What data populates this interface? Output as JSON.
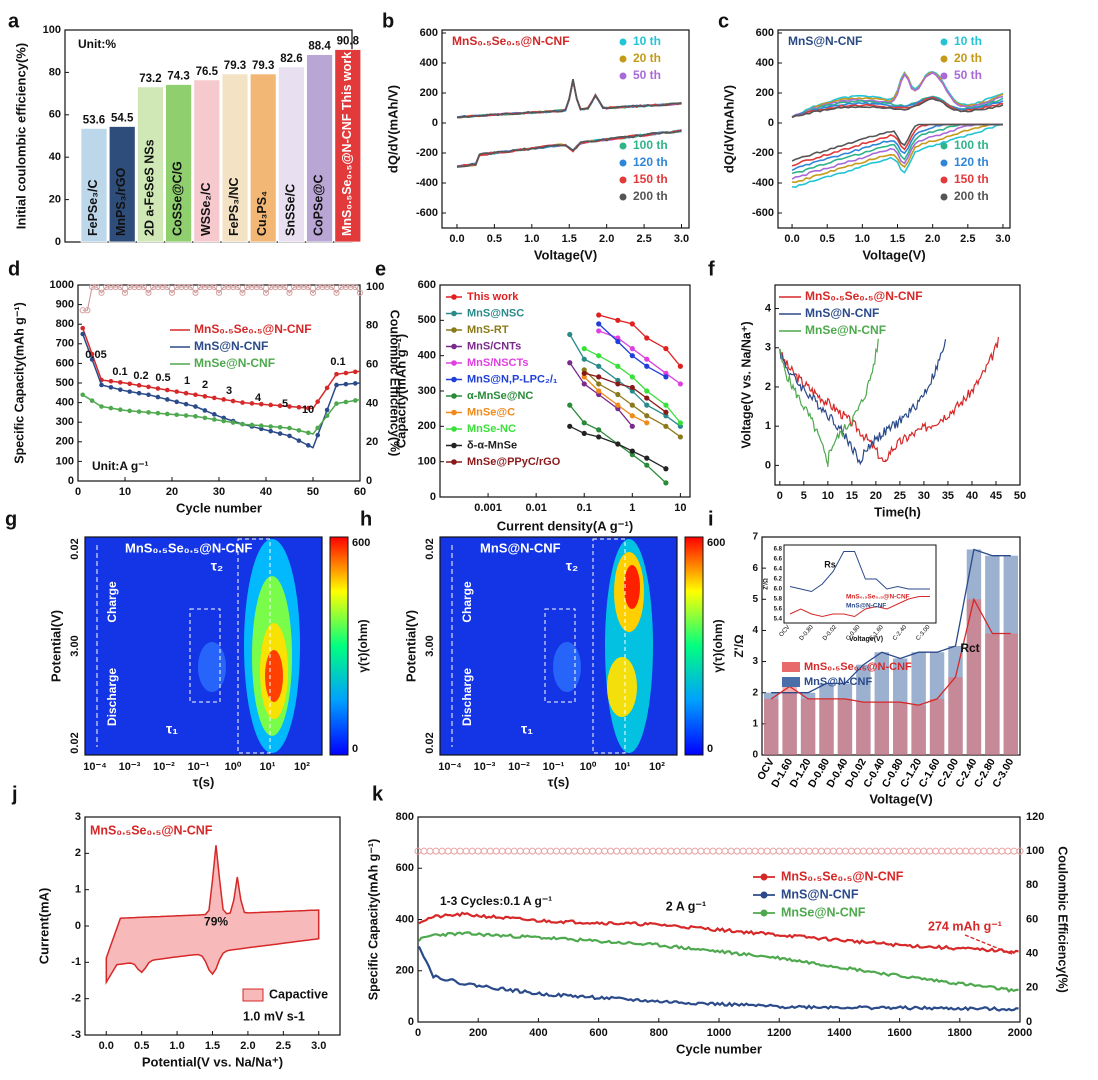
{
  "panels": {
    "a": {
      "letter": "a",
      "unit": "Unit:%",
      "ylabel": "Initial coulombic efficiency(%)",
      "ylim": [
        0,
        100
      ],
      "yticks": [
        0,
        20,
        40,
        60,
        80,
        100
      ],
      "bars": [
        {
          "label": "FePSe₃/C",
          "value": 53.6,
          "value_label": "53.6",
          "color": "#bcd7ea"
        },
        {
          "label": "MnPS₃/rGO",
          "value": 54.5,
          "value_label": "54.5",
          "color": "#2e4d7a"
        },
        {
          "label": "2D a-FeSeS NSs",
          "value": 73.2,
          "value_label": "73.2",
          "color": "#cfe8b6"
        },
        {
          "label": "CoSSe@C/G",
          "value": 74.3,
          "value_label": "74.3",
          "color": "#8fcf6e"
        },
        {
          "label": "WSSe₂/C",
          "value": 76.5,
          "value_label": "76.5",
          "color": "#f6c9cf"
        },
        {
          "label": "FePS₃/NC",
          "value": 79.3,
          "value_label": "79.3",
          "color": "#f3e2c3"
        },
        {
          "label": "Cu₃PS₄",
          "value": 79.3,
          "value_label": "79.3",
          "color": "#f2b774"
        },
        {
          "label": "SnSSe/C",
          "value": 82.6,
          "value_label": "82.6",
          "color": "#e8dff0"
        },
        {
          "label": "CoPSe@C",
          "value": 88.4,
          "value_label": "88.4",
          "color": "#b9a6d4"
        },
        {
          "label": "MnS₀.₅Se₀.₅@N-CNF This work",
          "value": 90.8,
          "value_label": "90.8",
          "color": "#e23a3a"
        }
      ]
    },
    "b": {
      "letter": "b",
      "title": "MnS₀.₅Se₀.₅@N-CNF",
      "xlabel": "Voltage(V)",
      "ylabel": "dQ/dV(mAh/V)",
      "xlim": [
        -0.2,
        3.1
      ],
      "ylim": [
        -700,
        620
      ],
      "xticks": [
        "0.0",
        "0.5",
        "1.0",
        "1.5",
        "2.0",
        "2.5",
        "3.0"
      ],
      "yticks": [
        "600",
        "400",
        "200",
        "0",
        "-200",
        "-400",
        "-600"
      ],
      "legend_top": [
        "10 th",
        "20 th",
        "50 th"
      ],
      "legend_bottom": [
        "100 th",
        "120 th",
        "150 th",
        "200 th"
      ]
    },
    "c": {
      "letter": "c",
      "title": "MnS@N-CNF",
      "xlabel": "Voltage(V)",
      "ylabel": "dQ/dV(mAh/V)",
      "xlim": [
        -0.2,
        3.1
      ],
      "ylim": [
        -700,
        620
      ],
      "xticks": [
        "0.0",
        "0.5",
        "1.0",
        "1.5",
        "2.0",
        "2.5",
        "3.0"
      ],
      "yticks": [
        "600",
        "400",
        "200",
        "0",
        "-200",
        "-400",
        "-600"
      ],
      "legend_top": [
        "10 th",
        "20 th",
        "50 th"
      ],
      "legend_bottom": [
        "100 th",
        "120 th",
        "150 th",
        "200 th"
      ]
    },
    "d": {
      "letter": "d",
      "xlabel": "Cycle number",
      "ylabel": "Specific Capacity(mAh g⁻¹)",
      "y2label": "Coulombic Efficiency(%)",
      "unit": "Unit:A g⁻¹",
      "xlim": [
        0,
        60
      ],
      "ylim": [
        0,
        1000
      ],
      "y2lim": [
        0,
        100
      ],
      "xticks": [
        "0",
        "10",
        "20",
        "30",
        "40",
        "50",
        "60"
      ],
      "yticks": [
        "0",
        "100",
        "200",
        "300",
        "400",
        "500",
        "600",
        "700",
        "800",
        "900",
        "1000"
      ],
      "y2ticks": [
        "0",
        "20",
        "40",
        "60",
        "80",
        "100"
      ],
      "rate_labels": [
        "0.05",
        "0.1",
        "0.2",
        "0.5",
        "1",
        "2",
        "3",
        "4",
        "5",
        "10",
        "0.1"
      ],
      "legend": [
        "MnS₀.₅Se₀.₅@N-CNF",
        "MnS@N-CNF",
        "MnSe@N-CNF"
      ]
    },
    "e": {
      "letter": "e",
      "xlabel": "Current density(A g⁻¹)",
      "ylabel": "Capacity(mAh g⁻¹)",
      "ylim": [
        0,
        600
      ],
      "xticks": [
        "0.001",
        "0.01",
        "0.1",
        "1",
        "10"
      ],
      "yticks": [
        "0",
        "100",
        "200",
        "300",
        "400",
        "500",
        "600"
      ],
      "legend": [
        "This work",
        "MnS@NSC",
        "MnS-RT",
        "MnS/CNTs",
        "MnS/NSCTs",
        "MnS@N,P-LPC₂/₁",
        "α-MnSe@NC",
        "MnSe@C",
        "MnSe-NC",
        "δ-α-MnSe",
        "MnSe@PPyC/rGO"
      ]
    },
    "f": {
      "letter": "f",
      "xlabel": "Time(h)",
      "ylabel": "Voltage(V vs. Na/Na⁺)",
      "xlim": [
        -1,
        50
      ],
      "ylim": [
        -0.5,
        4.6
      ],
      "xticks": [
        "0",
        "5",
        "10",
        "15",
        "20",
        "25",
        "30",
        "35",
        "40",
        "45",
        "50"
      ],
      "yticks": [
        "0",
        "1",
        "2",
        "3",
        "4"
      ],
      "legend": [
        "MnS₀.₅Se₀.₅@N-CNF",
        "MnS@N-CNF",
        "MnSe@N-CNF"
      ]
    },
    "g": {
      "letter": "g",
      "title": "MnS₀.₅Se₀.₅@N-CNF",
      "xlabel": "τ(s)",
      "ylabel": "Potential(V)",
      "clabel": "γ(τ)(ohm)",
      "cticks": [
        "600",
        "0"
      ],
      "yticks": [
        "0.02",
        "3.00",
        "0.02"
      ],
      "xticks": [
        "10⁻⁴",
        "10⁻³",
        "10⁻²",
        "10⁻¹",
        "10⁰",
        "10¹",
        "10²"
      ],
      "charge": "Charge",
      "discharge": "Discharge",
      "tau1": "τ₁",
      "tau2": "τ₂"
    },
    "h": {
      "letter": "h",
      "title": "MnS@N-CNF",
      "xlabel": "τ(s)",
      "ylabel": "Potential(V)",
      "clabel": "γ(τ)(ohm)",
      "cticks": [
        "600",
        "0"
      ],
      "yticks": [
        "0.02",
        "3.00",
        "0.02"
      ],
      "xticks": [
        "10⁻⁴",
        "10⁻³",
        "10⁻²",
        "10⁻¹",
        "10⁰",
        "10¹",
        "10²"
      ],
      "charge": "Charge",
      "discharge": "Discharge",
      "tau1": "τ₁",
      "tau2": "τ₂"
    },
    "i": {
      "letter": "i",
      "xlabel": "Voltage(V)",
      "ylabel": "Z'/Ω",
      "categories": [
        "OCV",
        "D-1.60",
        "D-1.20",
        "D-0.80",
        "D-0.40",
        "D-0.02",
        "C-0.40",
        "C-0.80",
        "C-1.20",
        "C-1.60",
        "C-2.00",
        "C-2.40",
        "C-2.80",
        "C-3.00"
      ],
      "yticks": [
        "0",
        "1",
        "2",
        "3",
        "4",
        "5",
        "6",
        "7"
      ],
      "legend": [
        "MnS₀.₅Se₀.₅@N-CNF",
        "MnS@N-CNF"
      ],
      "rct": "Rct",
      "inset_title": "Rs",
      "inset_ylabel": "Z'/Ω",
      "inset_xlabel": "Voltage(V)",
      "inset_yticks": [
        "5.4",
        "5.6",
        "5.8",
        "6.0",
        "6.2",
        "6.4",
        "6.6",
        "6.8"
      ],
      "inset_xticks": [
        "OCV",
        "D-0.80",
        "D-0.02",
        "C-0.80",
        "C-1.60",
        "C-2.40",
        "C-3.00"
      ],
      "inset_legend": [
        "MnS₀.₅Se₀.₅@N-CNF",
        "MnS@N-CNF"
      ]
    },
    "j": {
      "letter": "j",
      "title": "MnS₀.₅Se₀.₅@N-CNF",
      "xlabel": "Potential(V vs. Na/Na⁺)",
      "ylabel": "Current(mA)",
      "xticks": [
        "0.0",
        "0.5",
        "1.0",
        "1.5",
        "2.0",
        "2.5",
        "3.0"
      ],
      "yticks": [
        "3",
        "2",
        "1",
        "0",
        "-1",
        "-2",
        "-3"
      ],
      "percent": "79%",
      "legend": "Capactive",
      "rate": "1.0 mV s-1"
    },
    "k": {
      "letter": "k",
      "xlabel": "Cycle number",
      "ylabel": "Specific Capacity(mAh g⁻¹)",
      "y2label": "Coulombic Efficiency(%)",
      "xticks": [
        "0",
        "200",
        "400",
        "600",
        "800",
        "1000",
        "1200",
        "1400",
        "1600",
        "1800",
        "2000"
      ],
      "yticks": [
        "0",
        "200",
        "400",
        "600",
        "800"
      ],
      "y2ticks": [
        "0",
        "20",
        "40",
        "60",
        "80",
        "100",
        "120"
      ],
      "legend": [
        "MnS₀.₅Se₀.₅@N-CNF",
        "MnS@N-CNF",
        "MnSe@N-CNF"
      ],
      "note_cycles": "1-3 Cycles:0.1 A g⁻¹",
      "note_rate": "2 A g⁻¹",
      "note_final": "274 mAh g⁻¹"
    }
  },
  "chart_data": [
    {
      "panel": "a",
      "type": "bar",
      "categories": [
        "FePSe₃/C",
        "MnPS₃/rGO",
        "2D a-FeSeS NSs",
        "CoSSe@C/G",
        "WSSe₂/C",
        "FePS₃/NC",
        "Cu₃PS₄",
        "SnSSe/C",
        "CoPSe@C",
        "MnS₀.₅Se₀.₅@N-CNF This work"
      ],
      "values": [
        53.6,
        54.5,
        73.2,
        74.3,
        76.5,
        79.3,
        79.3,
        82.6,
        88.4,
        90.8
      ],
      "ylabel": "Initial coulombic efficiency(%)",
      "ylim": [
        0,
        100
      ]
    },
    {
      "panel": "d",
      "type": "line",
      "x": [
        1,
        5,
        10,
        15,
        20,
        25,
        30,
        35,
        40,
        45,
        50,
        55,
        60
      ],
      "series": [
        {
          "name": "MnS₀.₅Se₀.₅@N-CNF",
          "values": [
            780,
            515,
            500,
            480,
            460,
            440,
            420,
            400,
            390,
            380,
            370,
            545,
            560
          ]
        },
        {
          "name": "MnS@N-CNF",
          "values": [
            750,
            490,
            460,
            440,
            410,
            380,
            330,
            290,
            260,
            230,
            170,
            490,
            500
          ]
        },
        {
          "name": "MnSe@N-CNF",
          "values": [
            440,
            380,
            360,
            350,
            340,
            330,
            310,
            290,
            280,
            270,
            240,
            395,
            415
          ]
        }
      ],
      "xlabel": "Cycle number",
      "ylabel": "Specific Capacity(mAh g⁻¹)",
      "xlim": [
        0,
        60
      ],
      "ylim": [
        0,
        1000
      ]
    },
    {
      "panel": "k",
      "type": "line",
      "x": [
        3,
        50,
        150,
        400,
        800,
        1200,
        1600,
        2000
      ],
      "series": [
        {
          "name": "MnS₀.₅Se₀.₅@N-CNF",
          "values": [
            390,
            410,
            420,
            395,
            380,
            340,
            300,
            274
          ]
        },
        {
          "name": "MnS@N-CNF",
          "values": [
            300,
            180,
            150,
            110,
            80,
            60,
            55,
            50
          ]
        },
        {
          "name": "MnSe@N-CNF",
          "values": [
            320,
            340,
            345,
            330,
            300,
            250,
            180,
            120
          ]
        }
      ],
      "xlabel": "Cycle number",
      "ylabel": "Specific Capacity(mAh g⁻¹)",
      "xlim": [
        0,
        2000
      ],
      "ylim": [
        0,
        800
      ]
    },
    {
      "panel": "i",
      "type": "bar",
      "categories": [
        "OCV",
        "D-1.60",
        "D-1.20",
        "D-0.80",
        "D-0.40",
        "D-0.02",
        "C-0.40",
        "C-0.80",
        "C-1.20",
        "C-1.60",
        "C-2.00",
        "C-2.40",
        "C-2.80",
        "C-3.00"
      ],
      "series": [
        {
          "name": "MnS₀.₅Se₀.₅@N-CNF",
          "values": [
            1.8,
            2.2,
            1.8,
            1.8,
            1.8,
            1.7,
            1.7,
            1.7,
            1.6,
            1.8,
            2.5,
            5.0,
            3.9,
            3.9
          ]
        },
        {
          "name": "MnS@N-CNF",
          "values": [
            2.0,
            2.0,
            2.0,
            2.3,
            2.3,
            2.9,
            3.3,
            3.1,
            3.3,
            3.3,
            3.5,
            6.6,
            6.4,
            6.4
          ]
        }
      ],
      "ylabel": "Z'/Ω",
      "xlabel": "Voltage(V)"
    }
  ]
}
